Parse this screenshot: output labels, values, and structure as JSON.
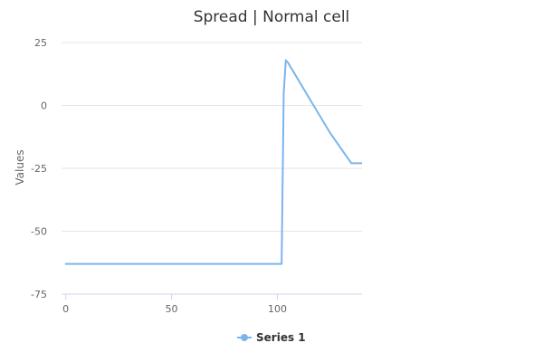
{
  "chart_data": {
    "type": "line",
    "title": "Spread | Normal cell",
    "xlabel": "",
    "ylabel": "Values",
    "xlim": [
      -2,
      140
    ],
    "ylim": [
      -75,
      25
    ],
    "x_ticks": [
      0,
      50,
      100
    ],
    "y_ticks": [
      25,
      0,
      -25,
      -50,
      -75
    ],
    "grid": "horizontal",
    "legend": "bottom-center",
    "series": [
      {
        "name": "Series 1",
        "color": "#7cb5ec",
        "x": [
          0,
          10,
          20,
          30,
          40,
          50,
          60,
          70,
          80,
          90,
          100,
          102,
          103,
          104,
          105,
          110,
          115,
          120,
          125,
          130,
          135,
          140
        ],
        "y": [
          -63,
          -63,
          -63,
          -63,
          -63,
          -63,
          -63,
          -63,
          -63,
          -63,
          -63,
          -63,
          5,
          18,
          17,
          10,
          3,
          -4,
          -11,
          -17,
          -23,
          -23
        ]
      }
    ]
  }
}
